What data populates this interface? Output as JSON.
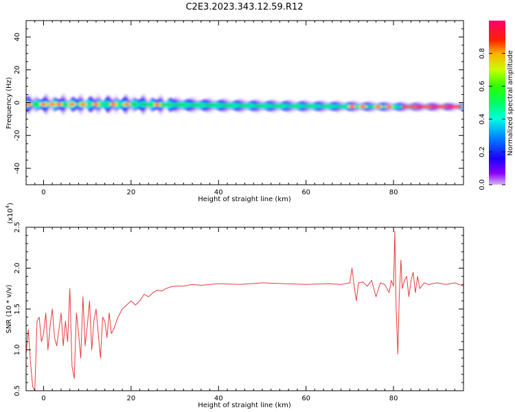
{
  "title": "C2E3.2023.343.12.59.R12",
  "colors": {
    "snr_line": "#e8383b",
    "background": "#ffffff",
    "axis": "#000000"
  },
  "chart_data": [
    {
      "type": "heatmap",
      "xlabel": "Height of straight line (km)",
      "ylabel": "Frequency (Hz)",
      "xlim": [
        -4,
        96
      ],
      "ylim": [
        -50,
        50
      ],
      "xticks": [
        0,
        20,
        40,
        60,
        80
      ],
      "yticks": [
        -40,
        -20,
        0,
        20,
        40
      ],
      "colorbar": {
        "label": "Normalized spectral amplitude",
        "range": [
          0,
          1
        ],
        "ticks": [
          "0.0",
          "0.2",
          "0.4",
          "0.6",
          "0.8"
        ],
        "colormap": "gist_rainbow (magenta-blue-cyan-green-yellow-red)"
      },
      "band": {
        "description": "narrow horizontal band centered near 0 Hz to -2 Hz",
        "center_hz": [
          [
            -4,
            -1
          ],
          [
            20,
            -1
          ],
          [
            50,
            -2
          ],
          [
            80,
            -2.5
          ],
          [
            96,
            -2.5
          ]
        ],
        "halfwidth_hz": [
          [
            -4,
            3
          ],
          [
            10,
            3
          ],
          [
            20,
            3
          ],
          [
            40,
            2.5
          ],
          [
            70,
            2
          ],
          [
            96,
            1.5
          ]
        ],
        "hotspots_x_km": [
          -3.5,
          0,
          2,
          3.5,
          6.5,
          9,
          12,
          16,
          19,
          26,
          70.5,
          73,
          76.5,
          79,
          85,
          88,
          91,
          94
        ]
      }
    },
    {
      "type": "line",
      "xlabel": "Height of straight line (km)",
      "ylabel": "SNR (10 * v/v)",
      "y_scale_label": "(x10",
      "y_scale_exponent": "4",
      "xlim": [
        -4,
        96
      ],
      "ylim": [
        0.5,
        2.5
      ],
      "xticks": [
        0,
        20,
        40,
        60,
        80
      ],
      "yticks": [
        "0.5",
        "1.0",
        "1.5",
        "2.0",
        "2.5"
      ],
      "series": [
        {
          "x": [
            -4,
            -3.5,
            -3,
            -2.5,
            -2,
            -1.5,
            -1,
            -0.5,
            0,
            0.5,
            1,
            1.5,
            2,
            2.5,
            3,
            3.5,
            4,
            4.5,
            5,
            5.5,
            6,
            6.5,
            7,
            7.5,
            8,
            8.5,
            9,
            9.5,
            10,
            10.5,
            11,
            11.5,
            12,
            12.5,
            13,
            13.5,
            14,
            14.5,
            15,
            15.5,
            16,
            17,
            18,
            19,
            20,
            21,
            22,
            23,
            24,
            25,
            26,
            27,
            28,
            29,
            30,
            32,
            34,
            36,
            38,
            40,
            45,
            50,
            55,
            60,
            65,
            68,
            70,
            70.5,
            71,
            71.5,
            72,
            73,
            74,
            75,
            76,
            77,
            78,
            79,
            79.5,
            80,
            80.3,
            80.6,
            81,
            81.3,
            81.7,
            82,
            82.5,
            83,
            83.5,
            84,
            84.5,
            85,
            85.5,
            86,
            87,
            88,
            90,
            92,
            94,
            95,
            96
          ],
          "y": [
            0.95,
            1.25,
            0.85,
            0.55,
            0.5,
            1.35,
            1.4,
            1.1,
            1.2,
            1.45,
            1.0,
            1.3,
            1.5,
            1.15,
            1.05,
            1.25,
            1.45,
            1.05,
            1.35,
            1.1,
            1.75,
            0.8,
            0.65,
            1.45,
            1.2,
            0.9,
            1.65,
            1.05,
            1.3,
            1.6,
            1.0,
            1.35,
            1.5,
            1.2,
            0.9,
            1.4,
            1.35,
            1.15,
            1.45,
            1.2,
            1.25,
            1.4,
            1.5,
            1.55,
            1.6,
            1.55,
            1.6,
            1.68,
            1.65,
            1.7,
            1.73,
            1.72,
            1.75,
            1.77,
            1.78,
            1.78,
            1.8,
            1.79,
            1.8,
            1.81,
            1.8,
            1.82,
            1.81,
            1.8,
            1.81,
            1.8,
            1.82,
            2.0,
            1.78,
            1.6,
            1.82,
            1.83,
            1.78,
            1.85,
            1.65,
            1.82,
            1.8,
            1.7,
            1.85,
            1.78,
            2.45,
            1.5,
            0.95,
            1.65,
            2.1,
            1.75,
            1.85,
            1.9,
            1.65,
            1.85,
            1.95,
            1.7,
            1.9,
            1.75,
            1.82,
            1.8,
            1.82,
            1.8,
            1.82,
            1.8,
            1.78
          ]
        }
      ]
    }
  ]
}
